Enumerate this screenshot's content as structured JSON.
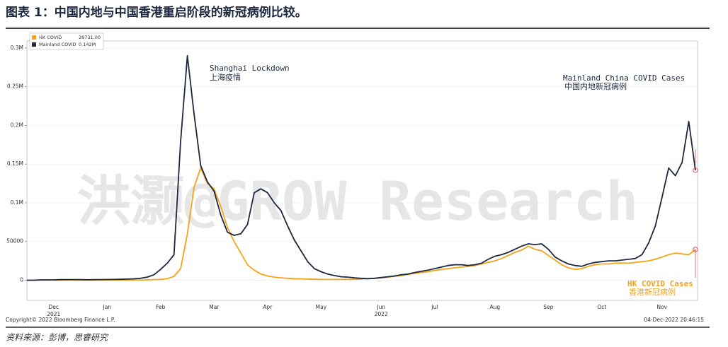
{
  "title": "图表 1：中国内地与中国香港重启阶段的新冠病例比较。",
  "source": "资料来源：彭博，思睿研究",
  "chart_data": {
    "type": "line",
    "watermark": "洪灏@GROW Research",
    "copyright": "Copyright© 2022 Bloomberg Finance L.P.",
    "timestamp": "04-Dec-2022 20:46:15",
    "annotations": [
      "Shanghai Lockdown",
      "上海疫情",
      "Mainland China COVID Cases",
      "中国内地新冠病例",
      "HK COVID Cases",
      "香港新冠病例"
    ],
    "categories": [
      null,
      null,
      null,
      null,
      "Dec",
      null,
      null,
      null,
      null,
      null,
      null,
      null,
      "Jan",
      null,
      null,
      null,
      null,
      null,
      null,
      null,
      "Feb",
      null,
      null,
      null,
      null,
      null,
      null,
      null,
      "Mar",
      null,
      null,
      null,
      null,
      null,
      null,
      null,
      "Apr",
      null,
      null,
      null,
      null,
      null,
      null,
      null,
      "May",
      null,
      null,
      null,
      null,
      null,
      null,
      null,
      null,
      "Jun",
      null,
      null,
      null,
      null,
      null,
      null,
      null,
      "Jul",
      null,
      null,
      null,
      null,
      null,
      null,
      null,
      null,
      "Aug",
      null,
      null,
      null,
      null,
      null,
      null,
      null,
      "Sep",
      null,
      null,
      null,
      null,
      null,
      null,
      null,
      "Oct",
      null,
      null,
      null,
      null,
      null,
      null,
      null,
      null,
      "Nov",
      null,
      null,
      null,
      null,
      null
    ],
    "year_labels": [
      null,
      null,
      null,
      null,
      "2021",
      null,
      null,
      null,
      null,
      null,
      null,
      null,
      null,
      null,
      null,
      null,
      null,
      null,
      null,
      null,
      null,
      null,
      null,
      null,
      null,
      null,
      null,
      null,
      null,
      null,
      null,
      null,
      null,
      null,
      null,
      null,
      null,
      null,
      null,
      null,
      null,
      null,
      null,
      null,
      null,
      null,
      null,
      null,
      null,
      null,
      null,
      null,
      null,
      "2022",
      null,
      null,
      null,
      null,
      null,
      null,
      null,
      null,
      null,
      null,
      null,
      null,
      null,
      null,
      null,
      null,
      null,
      null,
      null,
      null,
      null,
      null,
      null,
      null,
      null,
      null,
      null,
      null,
      null,
      null,
      null,
      null,
      null,
      null,
      null,
      null,
      null,
      null,
      null,
      null,
      null,
      null,
      null,
      null,
      null,
      null,
      null
    ],
    "series": [
      {
        "name": "HK COVID",
        "legend_value": "39731.00",
        "color": "#f5a31a",
        "values": [
          0,
          0,
          100,
          100,
          200,
          200,
          200,
          300,
          300,
          200,
          200,
          300,
          300,
          300,
          300,
          300,
          300,
          400,
          500,
          800,
          1000,
          2000,
          5000,
          15000,
          60000,
          120000,
          145000,
          125000,
          118000,
          95000,
          68000,
          50000,
          35000,
          20000,
          13000,
          8000,
          5500,
          4000,
          3000,
          2500,
          2000,
          1800,
          1500,
          1200,
          1000,
          1000,
          1000,
          1000,
          1000,
          1200,
          1500,
          2000,
          2500,
          3000,
          4000,
          5000,
          6000,
          7500,
          9000,
          10000,
          11000,
          12500,
          14000,
          15000,
          16000,
          17000,
          18000,
          19000,
          21000,
          23000,
          25000,
          28000,
          32000,
          36000,
          39000,
          44000,
          40000,
          38000,
          32000,
          26000,
          20000,
          16000,
          14000,
          15000,
          18000,
          20000,
          21000,
          21000,
          22000,
          22000,
          22000,
          23000,
          24000,
          25000,
          27000,
          30000,
          33000,
          35000,
          34000,
          33000,
          39731
        ]
      },
      {
        "name": "Mainland COVID",
        "legend_value": "0.142M",
        "color": "#1c2740",
        "values": [
          0,
          0,
          500,
          500,
          500,
          700,
          800,
          800,
          700,
          600,
          700,
          800,
          900,
          1000,
          1200,
          1500,
          1800,
          2500,
          4000,
          7000,
          14000,
          22000,
          33000,
          180000,
          290000,
          215000,
          148000,
          127000,
          115000,
          84000,
          62000,
          58000,
          60000,
          72000,
          113000,
          118000,
          113000,
          100000,
          90000,
          70000,
          52000,
          38000,
          24000,
          15000,
          11000,
          8000,
          6000,
          4500,
          4000,
          3000,
          2500,
          2000,
          2500,
          3500,
          4500,
          5500,
          7000,
          8000,
          10000,
          11500,
          13000,
          15000,
          17000,
          19000,
          20000,
          20000,
          19000,
          20000,
          22000,
          27000,
          31000,
          33000,
          36000,
          40000,
          44000,
          47000,
          46000,
          47000,
          40000,
          30000,
          25000,
          21000,
          19000,
          18000,
          21000,
          23000,
          24000,
          25000,
          25000,
          26000,
          27000,
          28000,
          33000,
          48000,
          70000,
          107000,
          145000,
          135000,
          152000,
          205000,
          142000
        ]
      }
    ],
    "ylim": [
      -26000,
      309000
    ],
    "yticks": [
      0,
      50000,
      {
        "value": 100000,
        "label": "0.1M"
      },
      {
        "value": 150000,
        "label": "0.15M"
      },
      {
        "value": 200000,
        "label": "0.2M"
      },
      {
        "value": 250000,
        "label": "0.25M"
      },
      {
        "value": 300000,
        "label": "0.3M"
      }
    ],
    "grid": true
  }
}
